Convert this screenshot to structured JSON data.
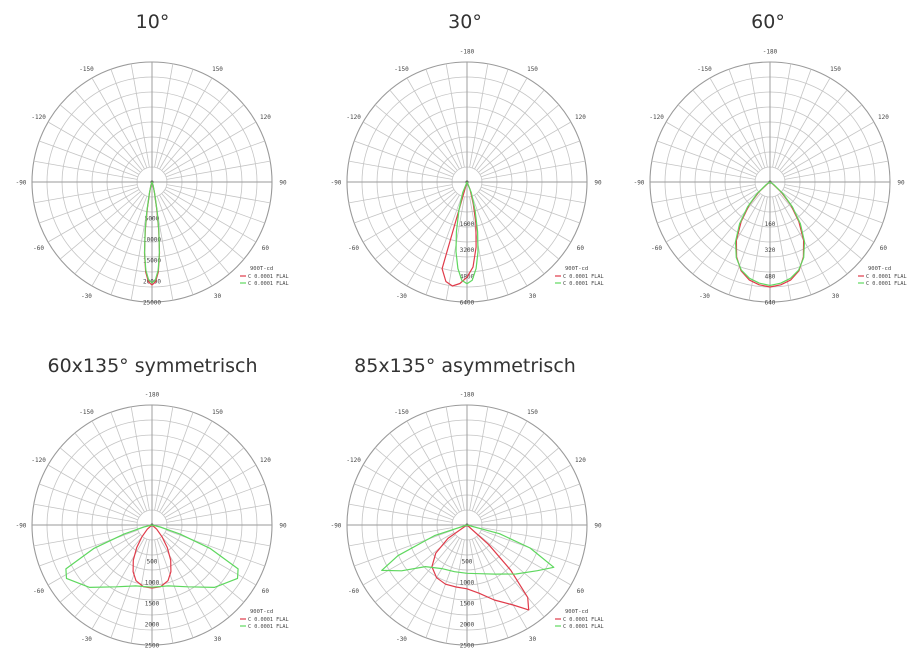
{
  "chart_data": [
    {
      "type": "polar",
      "title": "10°",
      "unit_label": "900T-cd",
      "angle_labels": [
        "-150",
        "150",
        "-120",
        "120",
        "-90",
        "90",
        "-60",
        "60",
        "-30",
        "30"
      ],
      "radial_labels": [
        "5000",
        "10000",
        "15000",
        "20000",
        "25000"
      ],
      "radial_max": 25000,
      "legend": [
        "C 0.0001 FLAL",
        "C 0.0001 FLAL"
      ],
      "series": [
        {
          "color": "#e03b4a",
          "points": [
            [
              0,
              24500
            ],
            [
              2,
              23800
            ],
            [
              4,
              21500
            ],
            [
              6,
              17000
            ],
            [
              8,
              11500
            ],
            [
              10,
              6500
            ],
            [
              13,
              2500
            ],
            [
              18,
              600
            ],
            [
              25,
              0
            ]
          ]
        },
        {
          "color": "#5fd85f",
          "points": [
            [
              0,
              24000
            ],
            [
              2,
              23300
            ],
            [
              4,
              21000
            ],
            [
              6,
              16800
            ],
            [
              8,
              11800
            ],
            [
              10,
              7000
            ],
            [
              13,
              3000
            ],
            [
              18,
              900
            ],
            [
              25,
              0
            ]
          ]
        }
      ]
    },
    {
      "type": "polar",
      "title": "30°",
      "unit_label": "900T-cd",
      "angle_labels": [
        "-180",
        "-150",
        "150",
        "-120",
        "120",
        "-90",
        "90",
        "-60",
        "60",
        "-30",
        "30"
      ],
      "radial_labels": [
        "1600",
        "3200",
        "4800",
        "6400"
      ],
      "radial_max": 6400,
      "legend": [
        "C 0.0001 FLAL",
        "C 0.0001 FLAL"
      ],
      "series": [
        {
          "color": "#e03b4a",
          "points": [
            [
              -16,
              5500
            ],
            [
              -12,
              6200
            ],
            [
              -8,
              6400
            ],
            [
              -4,
              6200
            ],
            [
              0,
              5800
            ],
            [
              4,
              5200
            ],
            [
              8,
              4000
            ],
            [
              12,
              2600
            ],
            [
              16,
              1400
            ],
            [
              22,
              500
            ],
            [
              30,
              0
            ]
          ]
        },
        {
          "color": "#5fd85f",
          "points": [
            [
              0,
              6200
            ],
            [
              3,
              6000
            ],
            [
              6,
              5300
            ],
            [
              9,
              4300
            ],
            [
              12,
              3100
            ],
            [
              16,
              1800
            ],
            [
              22,
              700
            ],
            [
              30,
              0
            ]
          ]
        }
      ]
    },
    {
      "type": "polar",
      "title": "60°",
      "unit_label": "900T-cd",
      "angle_labels": [
        "-180",
        "-150",
        "150",
        "-120",
        "120",
        "-90",
        "90",
        "-60",
        "60",
        "-30",
        "30"
      ],
      "radial_labels": [
        "160",
        "320",
        "480",
        "640"
      ],
      "radial_max": 640,
      "legend": [
        "C 0.0001 FLAL",
        "C 0.0001 FLAL"
      ],
      "series": [
        {
          "color": "#e03b4a",
          "points": [
            [
              0,
              640
            ],
            [
              6,
              630
            ],
            [
              12,
              610
            ],
            [
              18,
              570
            ],
            [
              24,
              500
            ],
            [
              30,
              410
            ],
            [
              36,
              300
            ],
            [
              42,
              190
            ],
            [
              48,
              90
            ],
            [
              55,
              20
            ],
            [
              60,
              0
            ]
          ]
        },
        {
          "color": "#5fd85f",
          "points": [
            [
              0,
              630
            ],
            [
              6,
              620
            ],
            [
              12,
              600
            ],
            [
              18,
              565
            ],
            [
              24,
              505
            ],
            [
              30,
              420
            ],
            [
              36,
              315
            ],
            [
              42,
              205
            ],
            [
              48,
              105
            ],
            [
              55,
              30
            ],
            [
              60,
              0
            ]
          ]
        }
      ]
    },
    {
      "type": "polar",
      "title": "60x135° symmetrisch",
      "unit_label": "900T-cd",
      "angle_labels": [
        "-180",
        "-150",
        "150",
        "-120",
        "120",
        "-90",
        "90",
        "-60",
        "60",
        "-30",
        "30"
      ],
      "radial_labels": [
        "500",
        "1000",
        "1500",
        "2000",
        "2500"
      ],
      "radial_max": 2500,
      "legend": [
        "C 0.0001 FLAL",
        "C 0.0001 FLAL"
      ],
      "series": [
        {
          "color": "#e03b4a",
          "points": [
            [
              0,
              1500
            ],
            [
              8,
              1480
            ],
            [
              16,
              1380
            ],
            [
              22,
              1200
            ],
            [
              28,
              950
            ],
            [
              34,
              650
            ],
            [
              40,
              380
            ],
            [
              48,
              150
            ],
            [
              55,
              0
            ]
          ]
        },
        {
          "color": "#5fd85f",
          "points": [
            [
              0,
              1480
            ],
            [
              15,
              1500
            ],
            [
              30,
              1700
            ],
            [
              45,
              2100
            ],
            [
              58,
              2400
            ],
            [
              63,
              2300
            ],
            [
              68,
              1500
            ],
            [
              72,
              700
            ],
            [
              76,
              200
            ],
            [
              80,
              0
            ]
          ]
        }
      ]
    },
    {
      "type": "polar",
      "title": "85x135° asymmetrisch",
      "unit_label": "900T-cd",
      "angle_labels": [
        "-180",
        "-150",
        "150",
        "-120",
        "120",
        "-90",
        "90",
        "-60",
        "60",
        "-30",
        "30"
      ],
      "radial_labels": [
        "500",
        "1000",
        "1500",
        "2000",
        "2500"
      ],
      "radial_max": 2500,
      "legend": [
        "C 0.0001 FLAL",
        "C 0.0001 FLAL"
      ],
      "series": [
        {
          "color": "#e03b4a",
          "points": [
            [
              -62,
              0
            ],
            [
              -55,
              550
            ],
            [
              -48,
              1000
            ],
            [
              -40,
              1300
            ],
            [
              -30,
              1450
            ],
            [
              -20,
              1500
            ],
            [
              -10,
              1500
            ],
            [
              0,
              1520
            ],
            [
              10,
              1650
            ],
            [
              20,
              1900
            ],
            [
              30,
              2200
            ],
            [
              36,
              2500
            ],
            [
              40,
              2250
            ],
            [
              44,
              1500
            ],
            [
              48,
              700
            ],
            [
              55,
              0
            ]
          ]
        },
        {
          "color": "#5fd85f",
          "points": [
            [
              -78,
              0
            ],
            [
              -72,
              800
            ],
            [
              -66,
              1800
            ],
            [
              -62,
              2300
            ],
            [
              -55,
              1900
            ],
            [
              -45,
              1400
            ],
            [
              -30,
              1200
            ],
            [
              -15,
              1150
            ],
            [
              0,
              1150
            ],
            [
              15,
              1200
            ],
            [
              30,
              1350
            ],
            [
              45,
              1650
            ],
            [
              57,
              2000
            ],
            [
              64,
              2300
            ],
            [
              70,
              1600
            ],
            [
              75,
              800
            ],
            [
              80,
              0
            ]
          ]
        }
      ]
    }
  ]
}
